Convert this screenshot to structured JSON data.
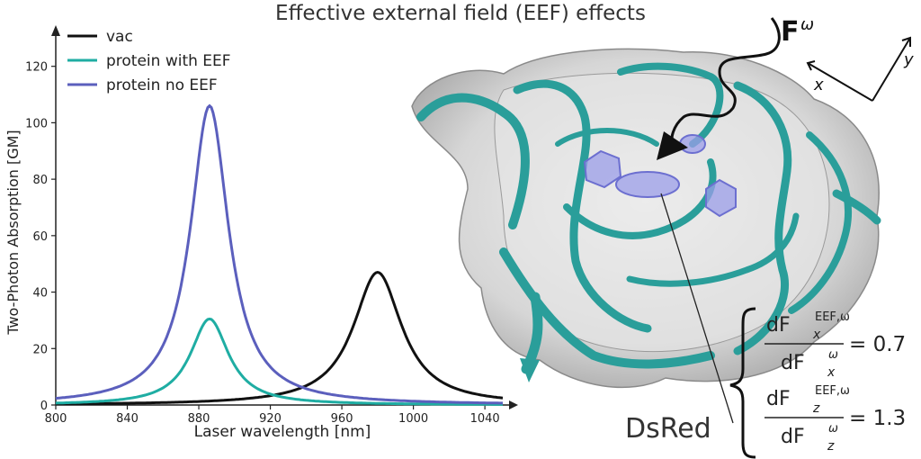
{
  "title": "Effective external field (EEF) effects",
  "chart_data": {
    "type": "line",
    "xlabel": "Laser wavelength [nm]",
    "ylabel": "Two-Photon Absorption [GM]",
    "xlim": [
      800,
      1050
    ],
    "ylim": [
      0,
      125
    ],
    "x_ticks": [
      "800",
      "840",
      "880",
      "920",
      "960",
      "1000",
      "1040"
    ],
    "y_ticks": [
      "0",
      "20",
      "40",
      "60",
      "80",
      "100",
      "120"
    ],
    "grid": false,
    "legend_position": "top-left",
    "series": [
      {
        "name": "vac",
        "color": "#111111",
        "peak_x": 980,
        "peak_y": 47,
        "hwhm": 16.5
      },
      {
        "name": "protein with EEF",
        "color": "#1fada3",
        "peak_x": 886,
        "peak_y": 30.5,
        "hwhm": 13
      },
      {
        "name": "protein no EEF",
        "color": "#5b5fbd",
        "peak_x": 886,
        "peak_y": 106,
        "hwhm": 13
      }
    ]
  },
  "diagram": {
    "field_label": "F",
    "field_superscript": "ω",
    "axis_x": "x",
    "axis_y": "y",
    "protein_name": "DsRed",
    "ratios": [
      {
        "num_base": "dF",
        "num_sub": "x",
        "num_sup": "EEF,ω",
        "den_base": "dF",
        "den_sub": "x",
        "den_sup": "ω",
        "value": "= 0.7"
      },
      {
        "num_base": "dF",
        "num_sub": "z",
        "num_sup": "EEF,ω",
        "den_base": "dF",
        "den_sub": "z",
        "den_sup": "ω",
        "value": "= 1.3"
      }
    ]
  }
}
